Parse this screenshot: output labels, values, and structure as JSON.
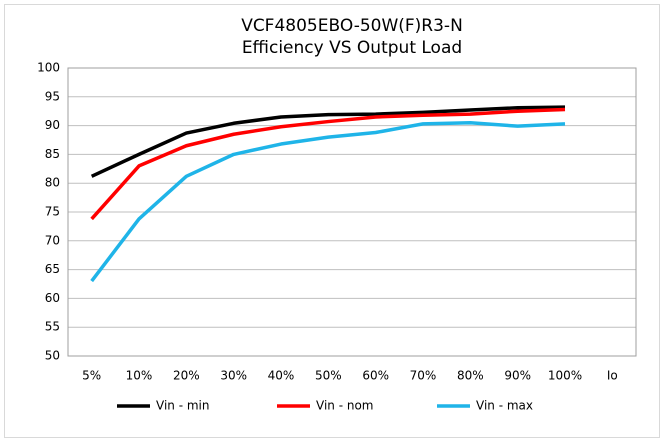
{
  "chart_data": {
    "type": "line",
    "title": [
      "VCF4805EBO-50W(F)R3-N",
      "Efficiency VS Output Load"
    ],
    "categories": [
      "5%",
      "10%",
      "20%",
      "30%",
      "40%",
      "50%",
      "60%",
      "70%",
      "80%",
      "90%",
      "100%"
    ],
    "x_label": "Io",
    "series": [
      {
        "name": "Vin - min",
        "color": "#000000",
        "values": [
          81.2,
          85,
          88.7,
          90.4,
          91.5,
          91.9,
          92,
          92.3,
          92.7,
          93.1,
          93.2
        ]
      },
      {
        "name": "Vin - nom",
        "color": "#ff0000",
        "values": [
          73.8,
          83,
          86.5,
          88.5,
          89.8,
          90.7,
          91.5,
          91.8,
          92,
          92.5,
          92.8
        ]
      },
      {
        "name": "Vin - max",
        "color": "#1fb4e8",
        "values": [
          63,
          73.8,
          81.2,
          85,
          86.8,
          88,
          88.8,
          90.3,
          90.5,
          89.9,
          90.3
        ]
      }
    ],
    "ylim": [
      50,
      100
    ],
    "yticks": [
      50,
      55,
      60,
      65,
      70,
      75,
      80,
      85,
      90,
      95,
      100
    ],
    "grid": true,
    "legend": "bottom"
  }
}
